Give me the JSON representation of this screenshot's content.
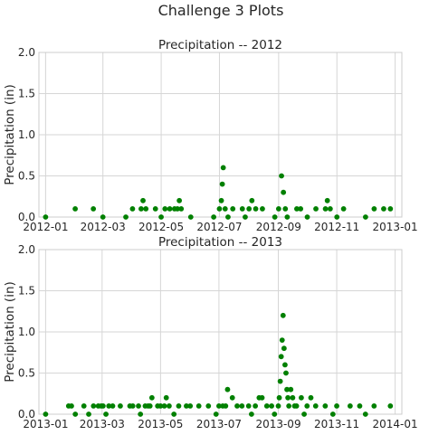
{
  "figure": {
    "suptitle": "Challenge 3 Plots"
  },
  "chart_data": [
    {
      "type": "scatter",
      "title": "Precipitation -- 2012",
      "ylabel": "Precipitation (in)",
      "xlabel": "",
      "ylim": [
        0,
        2.0
      ],
      "xlim": [
        "2011-12-25",
        "2013-01-08"
      ],
      "grid": true,
      "marker_color": "#008000",
      "yticks": [
        0.0,
        0.5,
        1.0,
        1.5,
        2.0
      ],
      "ytick_labels": [
        "0.0",
        "0.5",
        "1.0",
        "1.5",
        "2.0"
      ],
      "xticks": [
        "2012-01-01",
        "2012-03-01",
        "2012-05-01",
        "2012-07-01",
        "2012-09-01",
        "2012-11-01",
        "2013-01-01"
      ],
      "xtick_labels": [
        "2012-01",
        "2012-03",
        "2012-05",
        "2012-07",
        "2012-09",
        "2012-11",
        "2013-01"
      ],
      "points": [
        [
          "2012-01-01",
          0.0
        ],
        [
          "2012-02-01",
          0.1
        ],
        [
          "2012-02-20",
          0.1
        ],
        [
          "2012-03-01",
          0.0
        ],
        [
          "2012-03-25",
          0.0
        ],
        [
          "2012-04-01",
          0.1
        ],
        [
          "2012-04-10",
          0.1
        ],
        [
          "2012-04-12",
          0.2
        ],
        [
          "2012-04-15",
          0.1
        ],
        [
          "2012-04-25",
          0.1
        ],
        [
          "2012-05-01",
          0.0
        ],
        [
          "2012-05-05",
          0.1
        ],
        [
          "2012-05-10",
          0.1
        ],
        [
          "2012-05-15",
          0.1
        ],
        [
          "2012-05-18",
          0.1
        ],
        [
          "2012-05-20",
          0.2
        ],
        [
          "2012-05-22",
          0.1
        ],
        [
          "2012-06-01",
          0.0
        ],
        [
          "2012-06-25",
          0.0
        ],
        [
          "2012-07-01",
          0.1
        ],
        [
          "2012-07-03",
          0.2
        ],
        [
          "2012-07-04",
          0.4
        ],
        [
          "2012-07-05",
          0.6
        ],
        [
          "2012-07-07",
          0.1
        ],
        [
          "2012-07-10",
          0.0
        ],
        [
          "2012-07-15",
          0.1
        ],
        [
          "2012-07-25",
          0.1
        ],
        [
          "2012-07-28",
          0.0
        ],
        [
          "2012-08-01",
          0.1
        ],
        [
          "2012-08-04",
          0.2
        ],
        [
          "2012-08-08",
          0.1
        ],
        [
          "2012-08-15",
          0.1
        ],
        [
          "2012-08-28",
          0.0
        ],
        [
          "2012-09-01",
          0.1
        ],
        [
          "2012-09-04",
          0.5
        ],
        [
          "2012-09-06",
          0.3
        ],
        [
          "2012-09-08",
          0.1
        ],
        [
          "2012-09-10",
          0.0
        ],
        [
          "2012-09-20",
          0.1
        ],
        [
          "2012-09-24",
          0.1
        ],
        [
          "2012-10-01",
          0.0
        ],
        [
          "2012-10-10",
          0.1
        ],
        [
          "2012-10-20",
          0.1
        ],
        [
          "2012-10-22",
          0.2
        ],
        [
          "2012-10-25",
          0.1
        ],
        [
          "2012-11-01",
          0.0
        ],
        [
          "2012-11-08",
          0.1
        ],
        [
          "2012-12-01",
          0.0
        ],
        [
          "2012-12-10",
          0.1
        ],
        [
          "2012-12-20",
          0.1
        ],
        [
          "2012-12-27",
          0.1
        ]
      ]
    },
    {
      "type": "scatter",
      "title": "Precipitation -- 2013",
      "ylabel": "Precipitation (in)",
      "xlabel": "",
      "ylim": [
        0,
        2.0
      ],
      "xlim": [
        "2012-12-25",
        "2014-01-08"
      ],
      "grid": true,
      "marker_color": "#008000",
      "yticks": [
        0.0,
        0.5,
        1.0,
        1.5,
        2.0
      ],
      "ytick_labels": [
        "0.0",
        "0.5",
        "1.0",
        "1.5",
        "2.0"
      ],
      "xticks": [
        "2013-01-01",
        "2013-03-01",
        "2013-05-01",
        "2013-07-01",
        "2013-09-01",
        "2013-11-01",
        "2014-01-01"
      ],
      "xtick_labels": [
        "2013-01",
        "2013-03",
        "2013-05",
        "2013-07",
        "2013-09",
        "2013-11",
        "2014-01"
      ],
      "points": [
        [
          "2013-01-01",
          0.0
        ],
        [
          "2013-01-25",
          0.1
        ],
        [
          "2013-01-28",
          0.1
        ],
        [
          "2013-02-01",
          0.0
        ],
        [
          "2013-02-10",
          0.1
        ],
        [
          "2013-02-15",
          0.0
        ],
        [
          "2013-02-20",
          0.1
        ],
        [
          "2013-02-25",
          0.1
        ],
        [
          "2013-02-28",
          0.1
        ],
        [
          "2013-03-02",
          0.1
        ],
        [
          "2013-03-05",
          0.0
        ],
        [
          "2013-03-08",
          0.1
        ],
        [
          "2013-03-12",
          0.1
        ],
        [
          "2013-03-20",
          0.1
        ],
        [
          "2013-03-30",
          0.1
        ],
        [
          "2013-04-02",
          0.1
        ],
        [
          "2013-04-08",
          0.1
        ],
        [
          "2013-04-10",
          0.0
        ],
        [
          "2013-04-15",
          0.1
        ],
        [
          "2013-04-18",
          0.1
        ],
        [
          "2013-04-20",
          0.1
        ],
        [
          "2013-04-22",
          0.2
        ],
        [
          "2013-04-28",
          0.1
        ],
        [
          "2013-05-01",
          0.1
        ],
        [
          "2013-05-05",
          0.1
        ],
        [
          "2013-05-07",
          0.2
        ],
        [
          "2013-05-10",
          0.1
        ],
        [
          "2013-05-15",
          0.0
        ],
        [
          "2013-05-20",
          0.1
        ],
        [
          "2013-05-28",
          0.1
        ],
        [
          "2013-06-01",
          0.1
        ],
        [
          "2013-06-10",
          0.1
        ],
        [
          "2013-06-20",
          0.1
        ],
        [
          "2013-06-28",
          0.0
        ],
        [
          "2013-07-01",
          0.1
        ],
        [
          "2013-07-05",
          0.1
        ],
        [
          "2013-07-08",
          0.1
        ],
        [
          "2013-07-10",
          0.3
        ],
        [
          "2013-07-15",
          0.2
        ],
        [
          "2013-07-20",
          0.1
        ],
        [
          "2013-07-25",
          0.1
        ],
        [
          "2013-08-01",
          0.1
        ],
        [
          "2013-08-04",
          0.0
        ],
        [
          "2013-08-08",
          0.1
        ],
        [
          "2013-08-12",
          0.2
        ],
        [
          "2013-08-15",
          0.2
        ],
        [
          "2013-08-20",
          0.1
        ],
        [
          "2013-08-25",
          0.1
        ],
        [
          "2013-08-28",
          0.0
        ],
        [
          "2013-09-01",
          0.1
        ],
        [
          "2013-09-02",
          0.2
        ],
        [
          "2013-09-03",
          0.4
        ],
        [
          "2013-09-04",
          0.7
        ],
        [
          "2013-09-05",
          0.9
        ],
        [
          "2013-09-06",
          1.2
        ],
        [
          "2013-09-07",
          0.8
        ],
        [
          "2013-09-08",
          0.6
        ],
        [
          "2013-09-09",
          0.5
        ],
        [
          "2013-09-10",
          0.3
        ],
        [
          "2013-09-11",
          0.2
        ],
        [
          "2013-09-12",
          0.1
        ],
        [
          "2013-09-14",
          0.3
        ],
        [
          "2013-09-16",
          0.2
        ],
        [
          "2013-09-18",
          0.1
        ],
        [
          "2013-09-20",
          0.1
        ],
        [
          "2013-09-25",
          0.2
        ],
        [
          "2013-09-28",
          0.0
        ],
        [
          "2013-10-01",
          0.1
        ],
        [
          "2013-10-05",
          0.2
        ],
        [
          "2013-10-10",
          0.1
        ],
        [
          "2013-10-20",
          0.1
        ],
        [
          "2013-10-28",
          0.0
        ],
        [
          "2013-11-01",
          0.1
        ],
        [
          "2013-11-15",
          0.1
        ],
        [
          "2013-11-25",
          0.1
        ],
        [
          "2013-12-01",
          0.0
        ],
        [
          "2013-12-10",
          0.1
        ],
        [
          "2013-12-27",
          0.1
        ]
      ]
    }
  ]
}
